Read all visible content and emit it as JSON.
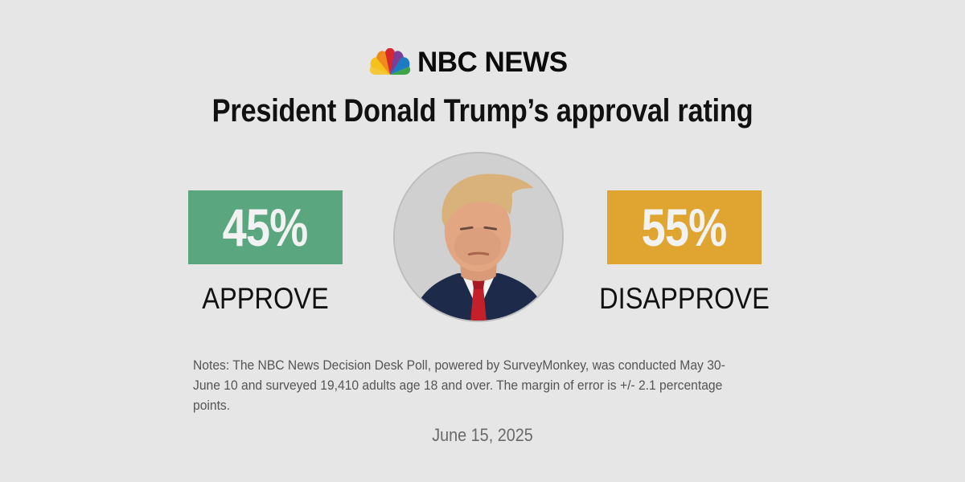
{
  "brand": {
    "name": "NBC NEWS",
    "logo_icon": "nbc-peacock-icon"
  },
  "title": "President Donald Trump’s approval rating",
  "results": {
    "approve": {
      "percent": 45,
      "percent_label": "45%",
      "label": "APPROVE",
      "color": "#5aa67f"
    },
    "disapprove": {
      "percent": 55,
      "percent_label": "55%",
      "label": "DISAPPROVE",
      "color": "#e0a531"
    }
  },
  "portrait": {
    "icon": "person-portrait-icon"
  },
  "notes": "Notes: The NBC News Decision Desk Poll, powered by SurveyMonkey, was conducted May 30-June 10 and surveyed 19,410 adults age 18 and over. The margin of error is +/- 2.1 percentage points.",
  "date": "June 15, 2025"
}
